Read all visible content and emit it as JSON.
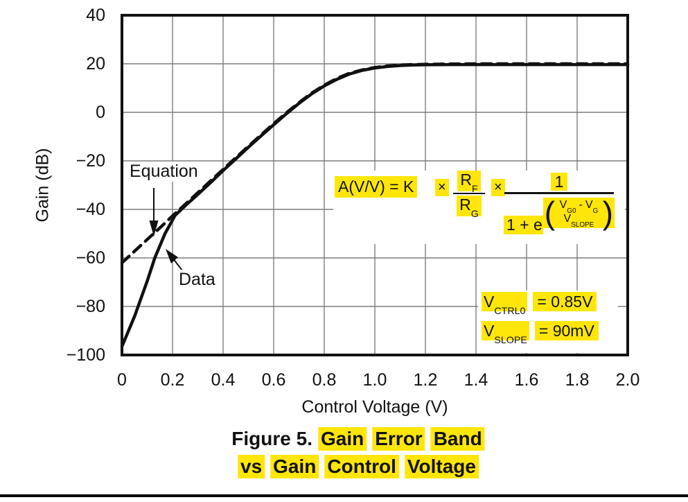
{
  "figure": {
    "caption_prefix": "Figure 5.",
    "caption_line1_words": [
      "Gain",
      "Error",
      "Band"
    ],
    "caption_line2_words": [
      "vs",
      "Gain",
      "Control",
      "Voltage"
    ]
  },
  "axis": {
    "x_label": "Control Voltage (V)",
    "y_label": "Gain (dB)",
    "x_ticks": [
      "0",
      "0.2",
      "0.4",
      "0.6",
      "0.8",
      "1.0",
      "1.2",
      "1.4",
      "1.6",
      "1.8",
      "2.0"
    ],
    "y_ticks": [
      "40",
      "20",
      "0",
      "−20",
      "−40",
      "−60",
      "−80",
      "−100"
    ]
  },
  "curve_labels": {
    "equation": "Equation",
    "data": "Data"
  },
  "equation": {
    "lhs": "A(V/V) = K",
    "mult1": "×",
    "mult2": "×",
    "rf_base": "R",
    "rf_sub": "F",
    "rg_base": "R",
    "rg_sub": "G",
    "numerator_one": "1",
    "one_plus_e": "1 + e",
    "lparen": "(",
    "rparen": ")",
    "vg0_base": "V",
    "vg0_sub": "G0",
    "minus": "-",
    "vg_base": "V",
    "vg_sub": "G",
    "vslope_base": "V",
    "vslope_sub": "SLOPE"
  },
  "conditions": {
    "row1": {
      "sym": "V",
      "sub": "CTRL0",
      "val": "= 0.85V"
    },
    "row2": {
      "sym": "V",
      "sub": "SLOPE",
      "val": "= 90mV"
    }
  },
  "colors": {
    "highlight": "#ffe60a",
    "curve": "#111111",
    "grid": "#7d7d7d",
    "frame": "#111111"
  },
  "chart_data": {
    "type": "line",
    "title": "Figure 5. Gain Error Band vs Gain Control Voltage",
    "xlabel": "Control Voltage (V)",
    "ylabel": "Gain (dB)",
    "xlim": [
      0,
      2.0
    ],
    "ylim": [
      -100,
      40
    ],
    "x_tick_step": 0.2,
    "y_tick_step": 20,
    "grid": true,
    "legend_position": "in-plot arrow labels",
    "annotations": [
      "A(V/V) = K × (RF/RG) × 1/(1 + e^((VG0 - VG)/VSLOPE))",
      "VCTRL0 = 0.85V",
      "VSLOPE = 90mV"
    ],
    "series": [
      {
        "name": "Data",
        "line_style": "solid",
        "x": [
          0,
          0.05,
          0.1,
          0.13,
          0.17,
          0.21,
          0.25,
          0.3,
          0.35,
          0.4,
          0.45,
          0.5,
          0.55,
          0.6,
          0.65,
          0.7,
          0.75,
          0.8,
          0.85,
          0.9,
          0.95,
          1.0,
          1.05,
          1.1,
          1.15,
          1.2,
          1.3,
          1.4,
          1.5,
          1.6,
          1.8,
          2.0
        ],
        "y": [
          -96.5,
          -84,
          -69.5,
          -60,
          -50,
          -42.5,
          -38.5,
          -33.8,
          -29,
          -24,
          -19.2,
          -14.4,
          -9.7,
          -5.1,
          -0.6,
          3.7,
          7.6,
          10.9,
          13.6,
          15.8,
          17.3,
          18.3,
          18.9,
          19.3,
          19.5,
          19.6,
          19.7,
          19.7,
          19.7,
          19.7,
          19.7,
          19.7
        ]
      },
      {
        "name": "Equation",
        "line_style": "dashed",
        "x": [
          0,
          0.05,
          0.1,
          0.15,
          0.2,
          0.25,
          0.3,
          0.35,
          0.4,
          0.45,
          0.5,
          0.55,
          0.6,
          0.65,
          0.7,
          0.75,
          0.8,
          0.85,
          0.9,
          0.95,
          1.0,
          1.05,
          1.1,
          1.15,
          1.2,
          1.3,
          1.4,
          1.5,
          1.6,
          1.8,
          2.0
        ],
        "y": [
          -62.0,
          -57.2,
          -52.4,
          -47.6,
          -42.7,
          -37.9,
          -33.1,
          -28.3,
          -23.5,
          -18.7,
          -14.0,
          -9.3,
          -4.7,
          -0.2,
          4.0,
          7.9,
          11.2,
          14.0,
          16.1,
          17.5,
          18.5,
          19.1,
          19.5,
          19.7,
          19.8,
          19.9,
          20.0,
          20.0,
          20.0,
          20.0,
          20.0
        ]
      }
    ]
  }
}
